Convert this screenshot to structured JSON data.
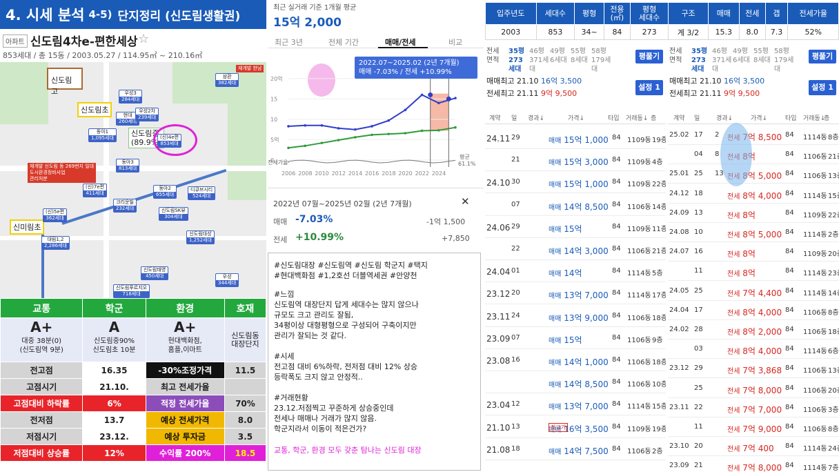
{
  "banner": {
    "part1": "4. 시세 분석",
    "part2": "4-5)",
    "part3": "단지정리 (신도림생활권)"
  },
  "apartment": {
    "tag": "아파트",
    "name": "신도림4차e-편한세상",
    "star": "☆",
    "meta": "853세대 / 총 15동 / 2003.05.27 / 114.95㎡ ~ 210.16㎡"
  },
  "map": {
    "labels": {
      "school_high": "신도림고",
      "school_elem1": "신도림초",
      "school_mid": "신도림중\n(89.9%)",
      "school_elem2": "신미림초"
    },
    "markers": [
      {
        "name": "우성3",
        "count": "284세대"
      },
      {
        "name": "현대",
        "count": "260세대"
      },
      {
        "name": "우성2차",
        "count": "239세대"
      },
      {
        "name": "동아1",
        "count": "1,095세대"
      },
      {
        "name": "(신)4e편",
        "count": "853세대"
      },
      {
        "name": "동아3",
        "count": "813세대"
      },
      {
        "name": "(신)7e편",
        "count": "411세대"
      },
      {
        "name": "동아2",
        "count": "655세대"
      },
      {
        "name": "디큐브시티",
        "count": "524세대"
      },
      {
        "name": "(신)5e편",
        "count": "362세대"
      },
      {
        "name": "크리운빌",
        "count": "232세대"
      },
      {
        "name": "신도림SK뷰",
        "count": "304세대"
      },
      {
        "name": "대림1,2",
        "count": "2,286세대"
      },
      {
        "name": "신도림대성",
        "count": "1,252세대"
      },
      {
        "name": "신도림태영",
        "count": "450세대"
      },
      {
        "name": "우성",
        "count": "344세대"
      },
      {
        "name": "신도림푸르지오",
        "count": "718세대"
      },
      {
        "name": "삼환",
        "count": "382세대"
      }
    ],
    "notice": "재개발 신도림 동 269번지 일대\n도시환경정비사업\n관리처분",
    "notice2": "재개발 한남"
  },
  "scores": {
    "headers": [
      "교통",
      "학군",
      "환경",
      "호재"
    ],
    "grades": [
      {
        "grade": "A+",
        "text": "대중 38분(0)\n(신도림역 9분)"
      },
      {
        "grade": "A",
        "text": "신도림중90%\n신도림초 10분"
      },
      {
        "grade": "A+",
        "text": "현대백화점,\n홈플,이마트"
      },
      {
        "grade": "",
        "text": "신도림동\n대장단지"
      }
    ],
    "rows": [
      [
        "전고점",
        "16.35",
        "-30%조정가격",
        "11.5"
      ],
      [
        "고점시기",
        "21.10.",
        "최고 전세가율",
        ""
      ],
      [
        "고점대비 하락률",
        "6%",
        "적정 전세가율",
        "70%"
      ],
      [
        "전저점",
        "13.7",
        "예상 전세가격",
        "8.0"
      ],
      [
        "저점시기",
        "23.12.",
        "예상 투자금",
        "3.5"
      ],
      [
        "저점대비 상승률",
        "12%",
        "수익률 200%",
        "18.5"
      ]
    ]
  },
  "price_chart": {
    "subtitle": "최근 실거래 기준 1개월 평균",
    "price": "15억 2,000",
    "tabs": [
      "최근 3년",
      "전체 기간",
      "매매/전세",
      "비교"
    ],
    "tooltip_range": "2022.07~2025.02 (2년 7개월)",
    "tooltip_change": "매매 -7.03% / 전세 +10.99%",
    "y_ticks": [
      "20억",
      "15",
      "10",
      "5억",
      "0"
    ],
    "x_ticks": [
      "2006",
      "2008",
      "2010",
      "2012",
      "2014",
      "2016",
      "2018",
      "2020",
      "2022",
      "2024"
    ],
    "jeonse_rate_label": "전세가율",
    "avg_label": "평균",
    "avg_value": "61.1%"
  },
  "chart_data": {
    "type": "line",
    "title": "",
    "xlabel": "",
    "ylabel": "",
    "ylim": [
      0,
      22
    ],
    "x": [
      "2006",
      "2008",
      "2010",
      "2012",
      "2014",
      "2016",
      "2018",
      "2020",
      "2022",
      "2024",
      "2025"
    ],
    "series": [
      {
        "name": "매매",
        "values": [
          8.3,
          8.5,
          8.5,
          7.8,
          7.5,
          8.3,
          9.7,
          12.3,
          16.0,
          14.0,
          15.2
        ]
      },
      {
        "name": "전세",
        "values": [
          3.0,
          3.5,
          4.2,
          4.9,
          5.6,
          6.2,
          6.4,
          6.6,
          7.2,
          7.3,
          8.0
        ]
      }
    ]
  },
  "change_box": {
    "title": "2022년 07월~2025년 02월 (2년 7개월)",
    "close": "✕",
    "sale_label": "매매",
    "sale_pct": "-7.03%",
    "sale_amt": "-1억 1,500",
    "rent_label": "전세",
    "rent_pct": "+10.99%",
    "rent_amt": "+7,850"
  },
  "notes": {
    "tags": "#신도림대장 #신도림역 #신도림 학군지 #택지\n#현대백화점 #1,2호선 더블역세권 #안양천",
    "text": "#느낌\n신도림역 대장단지 답게 세대수는 많지 않으나\n규모도 크고 관리도 잘됨,\n34평이상 대형평형으로 구성되어 구축이지만\n관리가 잘되는 것 같다.\n\n#시세\n전고점 대비 6%하락, 전저점 대비 12% 상승\n등락폭도 크지 않고 안정적..\n\n#거래현황\n23.12.저점찍고 꾸준하게 상승중인데\n전세나 매매나 거래가 많지 않음.\n학군지라서 이동이 적은건가?",
    "footer": "교통, 학군, 환경 모두 갖춘 탐나는 신도림 대장"
  },
  "summary": {
    "headers": [
      "입주년도",
      "세대수",
      "평형",
      "전용\n(㎡)",
      "평형\n세대수",
      "구조",
      "매매",
      "전세",
      "갭",
      "전세가율"
    ],
    "values": [
      "2003",
      "853",
      "34~",
      "84",
      "273",
      "계 3/2",
      "15.3",
      "8.0",
      "7.3",
      "52%"
    ]
  },
  "sale_panel": {
    "area_label": "전세\n면적",
    "sizes": [
      {
        "a": "35평",
        "b": "273세대"
      },
      {
        "a": "46평",
        "b": "371세대"
      },
      {
        "a": "49평",
        "b": "6세대"
      },
      {
        "a": "55평",
        "b": "8세대"
      },
      {
        "a": "58평",
        "b": "179세대"
      }
    ],
    "btn1": "평풀기",
    "hi1_label": "매매최고",
    "hi1_date": "21.10",
    "hi1_val": "16억 3,500",
    "hi2_label": "전세최고",
    "hi2_date": "21.11",
    "hi2_val": "9억 9,500",
    "btn2": "설정 1",
    "cols": [
      "계약",
      "일",
      "경과↓",
      "가격↓",
      "타입",
      "거래동↓",
      "층"
    ],
    "rows": [
      {
        "ym": "24.11",
        "d": "29",
        "t": "매매",
        "p": "15억 1,000",
        "ty": "84",
        "dong": "1109동",
        "fl": "19층"
      },
      {
        "ym": "",
        "d": "21",
        "t": "매매",
        "p": "15억 3,000",
        "ty": "84",
        "dong": "1109동",
        "fl": "4층"
      },
      {
        "ym": "24.10",
        "d": "30",
        "t": "매매",
        "p": "15억 1,000",
        "ty": "84",
        "dong": "1109동",
        "fl": "22층"
      },
      {
        "ym": "",
        "d": "07",
        "t": "매매",
        "p": "14억 8,500",
        "ty": "84",
        "dong": "1106동",
        "fl": "14층"
      },
      {
        "ym": "24.06",
        "d": "29",
        "t": "매매",
        "p": "15억",
        "ty": "84",
        "dong": "1109동",
        "fl": "11층"
      },
      {
        "ym": "",
        "d": "22",
        "t": "매매",
        "p": "14억 3,000",
        "ty": "84",
        "dong": "1106동",
        "fl": "21층"
      },
      {
        "ym": "24.04",
        "d": "01",
        "t": "매매",
        "p": "14억",
        "ty": "84",
        "dong": "1114동",
        "fl": "5층"
      },
      {
        "ym": "23.12",
        "d": "20",
        "t": "매매",
        "p": "13억 7,000",
        "ty": "84",
        "dong": "1114동",
        "fl": "17층"
      },
      {
        "ym": "23.11",
        "d": "24",
        "t": "매매",
        "p": "13억 9,000",
        "ty": "84",
        "dong": "1106동",
        "fl": "18층"
      },
      {
        "ym": "23.09",
        "d": "07",
        "t": "매매",
        "p": "15억",
        "ty": "84",
        "dong": "1106동",
        "fl": "9층"
      },
      {
        "ym": "23.08",
        "d": "16",
        "t": "매매",
        "p": "14억 1,000",
        "ty": "84",
        "dong": "1106동",
        "fl": "18층"
      },
      {
        "ym": "",
        "d": "",
        "t": "매매",
        "p": "14억 8,500",
        "ty": "84",
        "dong": "1106동",
        "fl": "10층"
      },
      {
        "ym": "23.04",
        "d": "12",
        "t": "매매",
        "p": "13억 7,000",
        "ty": "84",
        "dong": "1114동",
        "fl": "15층"
      },
      {
        "ym": "21.10",
        "d": "13",
        "t": "매매",
        "p": "16억 3,500",
        "ty": "84",
        "dong": "1109동",
        "fl": "19층",
        "tag": "최고가"
      },
      {
        "ym": "21.08",
        "d": "18",
        "t": "매매",
        "p": "14억 7,500",
        "ty": "84",
        "dong": "1106동",
        "fl": "2층"
      }
    ]
  },
  "rent_panel": {
    "area_label": "전세\n면적",
    "sizes": [
      {
        "a": "35평",
        "b": "273세대"
      },
      {
        "a": "46평",
        "b": "371세대"
      },
      {
        "a": "49평",
        "b": "6세대"
      },
      {
        "a": "55평",
        "b": "8세대"
      },
      {
        "a": "58평",
        "b": "179세대"
      }
    ],
    "btn1": "평풀기",
    "hi1_label": "매매최고",
    "hi1_date": "21.10",
    "hi1_val": "16억 3,500",
    "hi2_label": "전세최고",
    "hi2_date": "21.11",
    "hi2_val": "9억 9,500",
    "btn2": "설정 1",
    "cols": [
      "계약",
      "일",
      "경과↓",
      "가격↓",
      "타입",
      "거래동↓",
      "층"
    ],
    "rows": [
      {
        "ym": "25.02",
        "d": "17",
        "e": "2",
        "t": "전세",
        "p": "7억 8,500",
        "ty": "84",
        "dong": "1114동",
        "fl": "8층"
      },
      {
        "ym": "",
        "d": "04",
        "e": "8",
        "t": "전세",
        "p": "8억",
        "ty": "84",
        "dong": "1106동",
        "fl": "21층"
      },
      {
        "ym": "25.01",
        "d": "25",
        "e": "13",
        "t": "전세",
        "p": "8억 5,000",
        "ty": "84",
        "dong": "1106동",
        "fl": "13층"
      },
      {
        "ym": "24.12",
        "d": "18",
        "e": "",
        "t": "전세",
        "p": "8억 4,000",
        "ty": "84",
        "dong": "1114동",
        "fl": "15층"
      },
      {
        "ym": "24.09",
        "d": "13",
        "e": "",
        "t": "전세",
        "p": "8억",
        "ty": "84",
        "dong": "1109동",
        "fl": "22층"
      },
      {
        "ym": "24.08",
        "d": "10",
        "e": "",
        "t": "전세",
        "p": "8억 5,000",
        "ty": "84",
        "dong": "1114동",
        "fl": "2층"
      },
      {
        "ym": "24.07",
        "d": "16",
        "e": "",
        "t": "전세",
        "p": "8억",
        "ty": "84",
        "dong": "1109동",
        "fl": "20층"
      },
      {
        "ym": "",
        "d": "11",
        "e": "",
        "t": "전세",
        "p": "8억",
        "ty": "84",
        "dong": "1114동",
        "fl": "23층"
      },
      {
        "ym": "24.05",
        "d": "25",
        "e": "",
        "t": "전세",
        "p": "7억 4,400",
        "ty": "84",
        "dong": "1114동",
        "fl": "14층"
      },
      {
        "ym": "24.04",
        "d": "17",
        "e": "",
        "t": "전세",
        "p": "8억 4,000",
        "ty": "84",
        "dong": "1106동",
        "fl": "8층"
      },
      {
        "ym": "24.02",
        "d": "28",
        "e": "",
        "t": "전세",
        "p": "8억 2,000",
        "ty": "84",
        "dong": "1106동",
        "fl": "18층"
      },
      {
        "ym": "",
        "d": "03",
        "e": "",
        "t": "전세",
        "p": "8억 4,000",
        "ty": "84",
        "dong": "1114동",
        "fl": "6층"
      },
      {
        "ym": "23.12",
        "d": "29",
        "e": "",
        "t": "전세",
        "p": "7억 3,868",
        "ty": "84",
        "dong": "1106동",
        "fl": "13층"
      },
      {
        "ym": "",
        "d": "25",
        "e": "",
        "t": "전세",
        "p": "7억 8,000",
        "ty": "84",
        "dong": "1106동",
        "fl": "20층"
      },
      {
        "ym": "23.11",
        "d": "22",
        "e": "",
        "t": "전세",
        "p": "7억 7,000",
        "ty": "84",
        "dong": "1106동",
        "fl": "3층"
      },
      {
        "ym": "",
        "d": "11",
        "e": "",
        "t": "전세",
        "p": "7억 9,000",
        "ty": "84",
        "dong": "1106동",
        "fl": "8층"
      },
      {
        "ym": "23.10",
        "d": "20",
        "e": "",
        "t": "전세",
        "p": "7억 400",
        "ty": "84",
        "dong": "1114동",
        "fl": "24층"
      },
      {
        "ym": "23.09",
        "d": "21",
        "e": "",
        "t": "전세",
        "p": "7억 8,000",
        "ty": "84",
        "dong": "1114동",
        "fl": "7층"
      }
    ]
  }
}
